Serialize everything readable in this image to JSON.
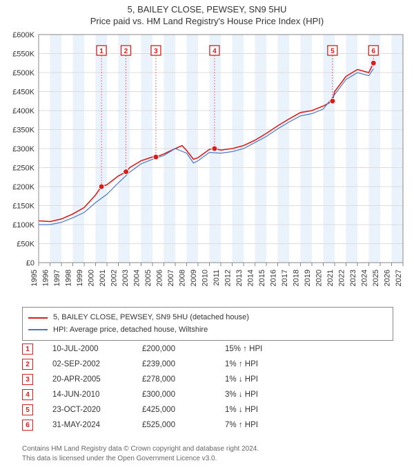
{
  "title_line1": "5, BAILEY CLOSE, PEWSEY, SN9 5HU",
  "title_line2": "Price paid vs. HM Land Registry's House Price Index (HPI)",
  "chart": {
    "type": "line",
    "background_color": "#ffffff",
    "stripe_color": "#eaf2fb",
    "gridline_color": "#dcdcdc",
    "axis_color": "#888888",
    "x_years": [
      1995,
      1996,
      1997,
      1998,
      1999,
      2000,
      2001,
      2002,
      2003,
      2004,
      2005,
      2006,
      2007,
      2008,
      2009,
      2010,
      2011,
      2012,
      2013,
      2014,
      2015,
      2016,
      2017,
      2018,
      2019,
      2020,
      2021,
      2022,
      2023,
      2024,
      2025,
      2026,
      2027
    ],
    "x_domain": [
      1995,
      2027
    ],
    "ylim": [
      0,
      600000
    ],
    "ytick_step": 50000,
    "ytick_labels": [
      "£0",
      "£50K",
      "£100K",
      "£150K",
      "£200K",
      "£250K",
      "£300K",
      "£350K",
      "£400K",
      "£450K",
      "£500K",
      "£550K",
      "£600K"
    ],
    "series": [
      {
        "name": "5, BAILEY CLOSE, PEWSEY, SN9 5HU (detached house)",
        "color": "#d91c1c",
        "width": 1.6,
        "points": [
          [
            1995.0,
            110000
          ],
          [
            1996.0,
            108000
          ],
          [
            1997.0,
            115000
          ],
          [
            1998.0,
            128000
          ],
          [
            1999.0,
            145000
          ],
          [
            2000.0,
            178000
          ],
          [
            2000.5,
            200000
          ],
          [
            2001.0,
            205000
          ],
          [
            2002.0,
            228000
          ],
          [
            2002.7,
            239000
          ],
          [
            2003.0,
            250000
          ],
          [
            2004.0,
            268000
          ],
          [
            2005.0,
            278000
          ],
          [
            2005.3,
            278000
          ],
          [
            2006.0,
            286000
          ],
          [
            2007.0,
            300000
          ],
          [
            2007.6,
            308000
          ],
          [
            2008.0,
            295000
          ],
          [
            2008.6,
            272000
          ],
          [
            2009.0,
            276000
          ],
          [
            2010.0,
            298000
          ],
          [
            2010.45,
            300000
          ],
          [
            2011.0,
            296000
          ],
          [
            2012.0,
            300000
          ],
          [
            2013.0,
            308000
          ],
          [
            2014.0,
            322000
          ],
          [
            2015.0,
            340000
          ],
          [
            2016.0,
            360000
          ],
          [
            2017.0,
            378000
          ],
          [
            2018.0,
            395000
          ],
          [
            2019.0,
            400000
          ],
          [
            2020.0,
            412000
          ],
          [
            2020.8,
            425000
          ],
          [
            2021.0,
            450000
          ],
          [
            2022.0,
            490000
          ],
          [
            2023.0,
            508000
          ],
          [
            2024.0,
            500000
          ],
          [
            2024.4,
            525000
          ]
        ]
      },
      {
        "name": "HPI: Average price, detached house, Wiltshire",
        "color": "#4a78c8",
        "width": 1.2,
        "points": [
          [
            1995.0,
            100000
          ],
          [
            1996.0,
            100000
          ],
          [
            1997.0,
            106000
          ],
          [
            1998.0,
            118000
          ],
          [
            1999.0,
            132000
          ],
          [
            2000.0,
            158000
          ],
          [
            2001.0,
            180000
          ],
          [
            2002.0,
            210000
          ],
          [
            2003.0,
            238000
          ],
          [
            2004.0,
            260000
          ],
          [
            2005.0,
            272000
          ],
          [
            2006.0,
            282000
          ],
          [
            2007.0,
            300000
          ],
          [
            2008.0,
            288000
          ],
          [
            2008.6,
            262000
          ],
          [
            2009.0,
            268000
          ],
          [
            2010.0,
            290000
          ],
          [
            2011.0,
            288000
          ],
          [
            2012.0,
            292000
          ],
          [
            2013.0,
            300000
          ],
          [
            2014.0,
            316000
          ],
          [
            2015.0,
            332000
          ],
          [
            2016.0,
            352000
          ],
          [
            2017.0,
            370000
          ],
          [
            2018.0,
            386000
          ],
          [
            2019.0,
            392000
          ],
          [
            2020.0,
            404000
          ],
          [
            2021.0,
            442000
          ],
          [
            2022.0,
            482000
          ],
          [
            2023.0,
            500000
          ],
          [
            2024.0,
            492000
          ],
          [
            2024.4,
            510000
          ]
        ]
      }
    ],
    "markers": [
      {
        "n": "1",
        "year": 2000.52,
        "price": 200000,
        "color": "#d91c1c"
      },
      {
        "n": "2",
        "year": 2002.67,
        "price": 239000,
        "color": "#d91c1c"
      },
      {
        "n": "3",
        "year": 2005.3,
        "price": 278000,
        "color": "#d91c1c"
      },
      {
        "n": "4",
        "year": 2010.45,
        "price": 300000,
        "color": "#d91c1c"
      },
      {
        "n": "5",
        "year": 2020.81,
        "price": 425000,
        "color": "#d91c1c"
      },
      {
        "n": "6",
        "year": 2024.41,
        "price": 525000,
        "color": "#d91c1c"
      }
    ],
    "marker_top_offset": 16
  },
  "legend": [
    {
      "color": "#d91c1c",
      "label": "5, BAILEY CLOSE, PEWSEY, SN9 5HU (detached house)"
    },
    {
      "color": "#4a78c8",
      "label": "HPI: Average price, detached house, Wiltshire"
    }
  ],
  "transactions": [
    {
      "n": "1",
      "date": "10-JUL-2000",
      "price": "£200,000",
      "diff": "15% ↑ HPI"
    },
    {
      "n": "2",
      "date": "02-SEP-2002",
      "price": "£239,000",
      "diff": "1% ↑ HPI"
    },
    {
      "n": "3",
      "date": "20-APR-2005",
      "price": "£278,000",
      "diff": "1% ↓ HPI"
    },
    {
      "n": "4",
      "date": "14-JUN-2010",
      "price": "£300,000",
      "diff": "3% ↓ HPI"
    },
    {
      "n": "5",
      "date": "23-OCT-2020",
      "price": "£425,000",
      "diff": "1% ↓ HPI"
    },
    {
      "n": "6",
      "date": "31-MAY-2024",
      "price": "£525,000",
      "diff": "7% ↑ HPI"
    }
  ],
  "transaction_marker_color": "#d91c1c",
  "footer_line1": "Contains HM Land Registry data © Crown copyright and database right 2024.",
  "footer_line2": "This data is licensed under the Open Government Licence v3.0."
}
